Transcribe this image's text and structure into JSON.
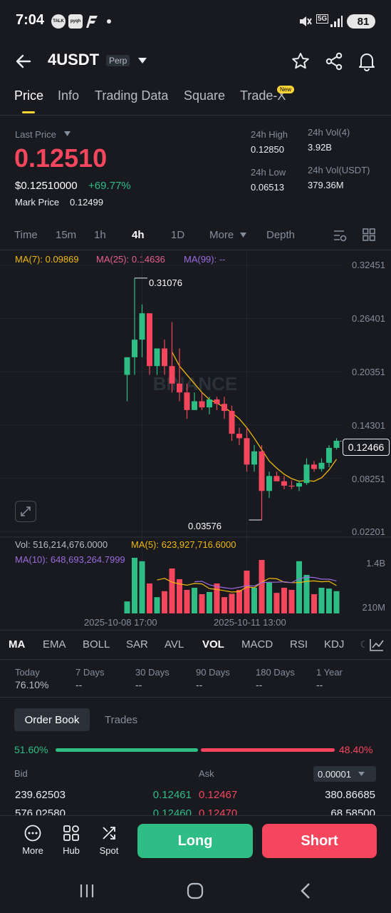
{
  "status": {
    "time": "7:04",
    "icons": [
      "talk-icon",
      "pyqh-icon",
      "flash-f-icon",
      "dot-icon",
      "mute-icon",
      "5g-icon",
      "signal-icon"
    ],
    "notif1": "TALK",
    "notif2": "pyqh",
    "network": "5G",
    "battery": "81"
  },
  "header": {
    "back_icon": "arrow-left-icon",
    "symbol": "4USDT",
    "badge": "Perp",
    "dropdown_icon": "caret-down-icon",
    "actions": [
      "star-icon",
      "share-icon",
      "bell-icon"
    ]
  },
  "tabs": {
    "items": [
      "Price",
      "Info",
      "Trading Data",
      "Square",
      "Trade-X"
    ],
    "active": "Price",
    "new_badge": "New"
  },
  "ticker": {
    "last_price_label": "Last Price",
    "last_price": "0.12510",
    "usd_price": "$0.12510000",
    "change": "+69.77%",
    "mark_label": "Mark Price",
    "mark_price": "0.12499",
    "high_label": "24h High",
    "high": "0.12850",
    "low_label": "24h Low",
    "low": "0.06513",
    "vol_label": "24h Vol(4)",
    "vol": "3.92B",
    "vol_usdt_label": "24h Vol(USDT)",
    "vol_usdt": "379.36M"
  },
  "timeframes": {
    "items": [
      "Time",
      "15m",
      "1h",
      "4h",
      "1D",
      "More",
      "Depth"
    ],
    "active": "4h"
  },
  "ma_legend": {
    "ma7": "MA(7): 0.09869",
    "ma25": "MA(25): 0.14636",
    "ma99": "MA(99): --"
  },
  "chart_data": {
    "type": "candlestick",
    "price_axis": [
      "0.32451",
      "0.26401",
      "0.20351",
      "0.14301",
      "0.08251",
      "0.02201"
    ],
    "ylim": [
      0.02201,
      0.32451
    ],
    "max_label": "0.31076",
    "min_label": "0.03576",
    "current_price": "0.12466",
    "watermark": "BINANCE",
    "candles": [
      {
        "o": 0.2,
        "h": 0.22,
        "l": 0.17,
        "c": 0.22
      },
      {
        "o": 0.22,
        "h": 0.31,
        "l": 0.2,
        "c": 0.24
      },
      {
        "o": 0.24,
        "h": 0.28,
        "l": 0.22,
        "c": 0.27
      },
      {
        "o": 0.27,
        "h": 0.27,
        "l": 0.2,
        "c": 0.21
      },
      {
        "o": 0.21,
        "h": 0.23,
        "l": 0.2,
        "c": 0.23
      },
      {
        "o": 0.23,
        "h": 0.24,
        "l": 0.2,
        "c": 0.21
      },
      {
        "o": 0.21,
        "h": 0.26,
        "l": 0.18,
        "c": 0.19
      },
      {
        "o": 0.19,
        "h": 0.23,
        "l": 0.17,
        "c": 0.18
      },
      {
        "o": 0.18,
        "h": 0.19,
        "l": 0.15,
        "c": 0.16
      },
      {
        "o": 0.16,
        "h": 0.18,
        "l": 0.16,
        "c": 0.17
      },
      {
        "o": 0.17,
        "h": 0.18,
        "l": 0.16,
        "c": 0.163
      },
      {
        "o": 0.163,
        "h": 0.175,
        "l": 0.155,
        "c": 0.172
      },
      {
        "o": 0.172,
        "h": 0.175,
        "l": 0.16,
        "c": 0.167
      },
      {
        "o": 0.167,
        "h": 0.175,
        "l": 0.15,
        "c": 0.159
      },
      {
        "o": 0.159,
        "h": 0.165,
        "l": 0.125,
        "c": 0.133
      },
      {
        "o": 0.133,
        "h": 0.14,
        "l": 0.12,
        "c": 0.128
      },
      {
        "o": 0.128,
        "h": 0.14,
        "l": 0.09,
        "c": 0.098
      },
      {
        "o": 0.098,
        "h": 0.12,
        "l": 0.09,
        "c": 0.113
      },
      {
        "o": 0.113,
        "h": 0.12,
        "l": 0.035,
        "c": 0.068
      },
      {
        "o": 0.068,
        "h": 0.09,
        "l": 0.06,
        "c": 0.085
      },
      {
        "o": 0.085,
        "h": 0.09,
        "l": 0.08,
        "c": 0.079
      },
      {
        "o": 0.079,
        "h": 0.085,
        "l": 0.07,
        "c": 0.074
      },
      {
        "o": 0.074,
        "h": 0.08,
        "l": 0.07,
        "c": 0.073
      },
      {
        "o": 0.073,
        "h": 0.08,
        "l": 0.068,
        "c": 0.077
      },
      {
        "o": 0.077,
        "h": 0.105,
        "l": 0.075,
        "c": 0.098
      },
      {
        "o": 0.098,
        "h": 0.102,
        "l": 0.09,
        "c": 0.093
      },
      {
        "o": 0.093,
        "h": 0.105,
        "l": 0.09,
        "c": 0.1
      },
      {
        "o": 0.1,
        "h": 0.12,
        "l": 0.095,
        "c": 0.117
      },
      {
        "o": 0.117,
        "h": 0.128,
        "l": 0.115,
        "c": 0.125
      }
    ],
    "ma7": [
      null,
      null,
      null,
      null,
      null,
      null,
      0.226,
      0.21,
      0.2,
      0.19,
      0.18,
      0.172,
      0.168,
      0.163,
      0.157,
      0.15,
      0.14,
      0.128,
      0.115,
      0.102,
      0.094,
      0.087,
      0.082,
      0.079,
      0.08,
      0.079,
      0.083,
      0.092,
      0.104
    ],
    "vol_legend": {
      "vol": "Vol: 516,214,676.0000",
      "ma5": "MA(5): 623,927,716.6000",
      "ma10": "MA(10): 648,693,264.7999"
    },
    "vol_axis": [
      "1.4B",
      "210M"
    ],
    "vol_ylim": [
      0,
      1.5
    ],
    "volumes": [
      0.28,
      1.3,
      1.22,
      0.7,
      0.38,
      0.52,
      1.05,
      0.8,
      0.55,
      0.6,
      0.45,
      0.5,
      0.7,
      0.38,
      0.46,
      0.55,
      1.0,
      0.6,
      1.25,
      0.72,
      0.48,
      0.6,
      0.55,
      1.22,
      0.9,
      0.45,
      0.6,
      0.58,
      0.52
    ],
    "vol_ma5": [
      null,
      null,
      null,
      null,
      0.78,
      0.82,
      0.73,
      0.69,
      0.66,
      0.7,
      0.69,
      0.58,
      0.56,
      0.53,
      0.5,
      0.51,
      0.62,
      0.6,
      0.73,
      0.82,
      0.81,
      0.73,
      0.72,
      0.72,
      0.75,
      0.76,
      0.74,
      0.75,
      0.65
    ],
    "vol_ma10": [
      null,
      null,
      null,
      null,
      null,
      null,
      null,
      null,
      null,
      0.74,
      0.75,
      0.67,
      0.63,
      0.6,
      0.58,
      0.61,
      0.65,
      0.64,
      0.72,
      0.73,
      0.73,
      0.74,
      0.72,
      0.81,
      0.85,
      0.84,
      0.8,
      0.8,
      0.76
    ],
    "x_labels": [
      "2025-10-08 17:00",
      "2025-10-11 13:00"
    ],
    "x_label_candles": [
      2,
      16
    ],
    "colors": {
      "up": "#2ebd85",
      "down": "#f6465d",
      "ma7": "#f0b90b",
      "ma25": "#e5608c",
      "ma99": "#9c6ade"
    }
  },
  "indicators": {
    "items": [
      "MA",
      "EMA",
      "BOLL",
      "SAR",
      "AVL",
      "VOL",
      "MACD",
      "RSI",
      "KDJ",
      "C"
    ],
    "active": [
      "MA",
      "VOL"
    ],
    "settings_icon": "chart-settings-icon"
  },
  "periods": [
    {
      "label": "Today",
      "value": "76.10%"
    },
    {
      "label": "7 Days",
      "value": "--"
    },
    {
      "label": "30 Days",
      "value": "--"
    },
    {
      "label": "90 Days",
      "value": "--"
    },
    {
      "label": "180 Days",
      "value": "--"
    },
    {
      "label": "1 Year",
      "value": "--"
    }
  ],
  "orderbook": {
    "tabs": [
      "Order Book",
      "Trades"
    ],
    "active": "Order Book",
    "bid_pct": "51.60%",
    "ask_pct": "48.40%",
    "bid_ratio": 0.516,
    "bid_label": "Bid",
    "ask_label": "Ask",
    "precision": "0.00001",
    "rows": [
      {
        "bid_qty": "239.62503",
        "bid_price": "0.12461",
        "ask_price": "0.12467",
        "ask_qty": "380.86685"
      },
      {
        "bid_qty": "576.02580",
        "bid_price": "0.12460",
        "ask_price": "0.12470",
        "ask_qty": "68.58500"
      }
    ]
  },
  "bottom": {
    "more": "More",
    "hub": "Hub",
    "spot": "Spot",
    "long": "Long",
    "short": "Short"
  },
  "navbar": [
    "recents-icon",
    "home-icon",
    "back-icon"
  ]
}
